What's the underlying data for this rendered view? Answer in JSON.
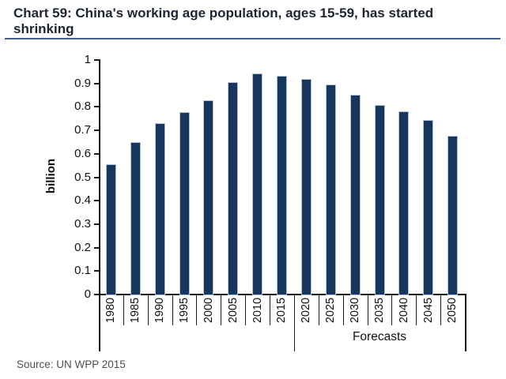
{
  "title": {
    "line1": "Chart 59: China's working age population, ages 15-59, has started",
    "line2": "shrinking"
  },
  "source": "Source: UN WPP 2015",
  "colors": {
    "bar": "#17365D",
    "bar_border": "#b7c1d6",
    "axis": "#1a1a1a",
    "title_text": "#1d2433",
    "title_underline": "#44618e",
    "source_text": "#4f4f4f"
  },
  "chart_data": {
    "type": "bar",
    "title": "Chart 59: China's working age population, ages 15-59, has started shrinking",
    "xlabel": "",
    "ylabel": "billion",
    "categories": [
      "1980",
      "1985",
      "1990",
      "1995",
      "2000",
      "2005",
      "2010",
      "2015",
      "2020",
      "2025",
      "2030",
      "2035",
      "2040",
      "2045",
      "2050"
    ],
    "values": [
      0.553,
      0.645,
      0.728,
      0.776,
      0.825,
      0.902,
      0.94,
      0.929,
      0.917,
      0.891,
      0.847,
      0.806,
      0.778,
      0.74,
      0.673
    ],
    "ylim": [
      0,
      1
    ],
    "ytick_labels": [
      "0",
      "0.1",
      "0.2",
      "0.3",
      "0.4",
      "0.5",
      "0.6",
      "0.7",
      "0.8",
      "0.9",
      "1"
    ],
    "grid": false,
    "legend": "none",
    "annotations": {
      "forecast_label": "Forecasts",
      "forecast_start_category": "2020"
    }
  }
}
